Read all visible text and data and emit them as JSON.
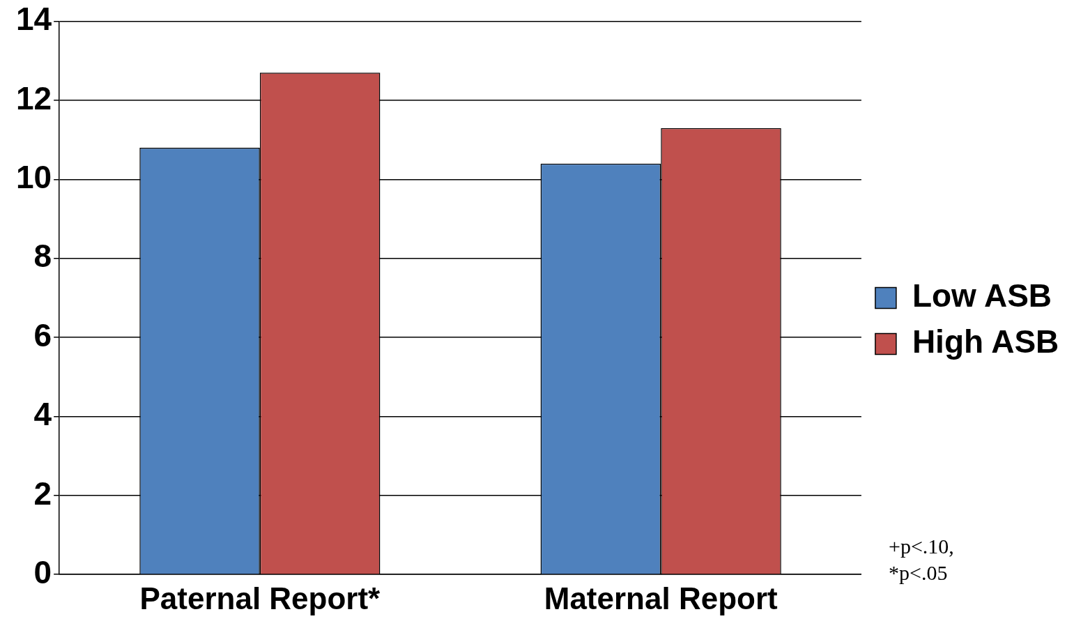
{
  "chart_data": {
    "type": "bar",
    "categories": [
      "Paternal Report*",
      "Maternal Report"
    ],
    "series": [
      {
        "name": "Low ASB",
        "color": "#4f81bd",
        "values": [
          10.8,
          10.4
        ]
      },
      {
        "name": "High ASB",
        "color": "#c0504d",
        "values": [
          12.7,
          11.3
        ]
      }
    ],
    "ylim": [
      0,
      14
    ],
    "yticks": [
      0,
      2,
      4,
      6,
      8,
      10,
      12,
      14
    ],
    "grid": "y",
    "legend": "right",
    "annotations": [
      "+p<.10,",
      "*p<.05"
    ]
  }
}
